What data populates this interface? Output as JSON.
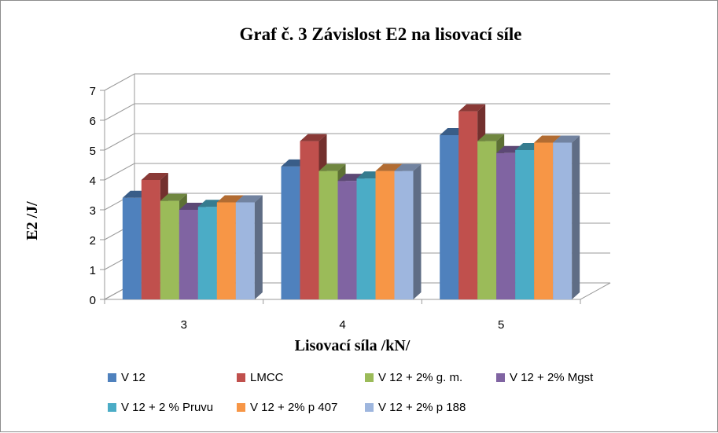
{
  "chart_data": {
    "type": "bar",
    "title": "Graf č. 3 Závislost E2 na lisovací síle",
    "xlabel": "Lisovací síla /kN/",
    "ylabel": "E2 /J/",
    "categories": [
      "3",
      "4",
      "5"
    ],
    "ylim": [
      0,
      7
    ],
    "yticks": [
      0,
      1,
      2,
      3,
      4,
      5,
      6,
      7
    ],
    "grid": true,
    "legend_position": "bottom",
    "series": [
      {
        "name": "V 12",
        "color": "#4F81BD",
        "values": [
          3.4,
          4.45,
          5.5
        ]
      },
      {
        "name": "LMCC",
        "color": "#C0504D",
        "values": [
          4.0,
          5.3,
          6.3
        ]
      },
      {
        "name": "V 12 + 2% g. m.",
        "color": "#9BBB59",
        "values": [
          3.3,
          4.3,
          5.3
        ]
      },
      {
        "name": "V 12 + 2% Mgst",
        "color": "#8064A2",
        "values": [
          3.0,
          3.97,
          4.9
        ]
      },
      {
        "name": "V 12 + 2 % Pruvu",
        "color": "#4BACC6",
        "values": [
          3.1,
          4.05,
          5.0
        ]
      },
      {
        "name": "V 12 + 2% p 407",
        "color": "#F79646",
        "values": [
          3.25,
          4.3,
          5.25
        ]
      },
      {
        "name": "V 12 + 2% p 188",
        "color": "#9EB6DE",
        "values": [
          3.25,
          4.3,
          5.25
        ]
      }
    ]
  }
}
